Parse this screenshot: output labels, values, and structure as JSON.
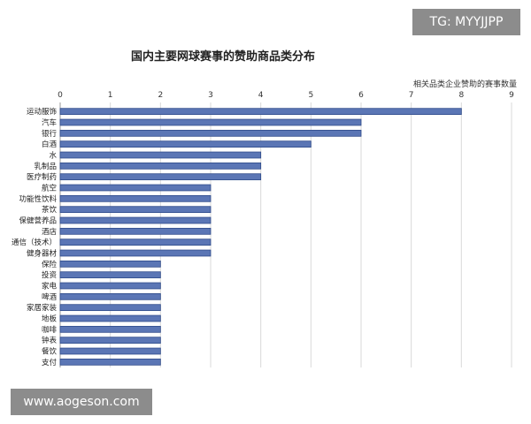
{
  "badges": {
    "top_right": "TG: MYYJJPP",
    "bottom_left": "www.aogeson.com"
  },
  "chart_data": {
    "type": "bar",
    "orientation": "horizontal",
    "title": "国内主要网球赛事的赞助商品类分布",
    "xlabel": "相关品类企业赞助的赛事数量",
    "ylabel": "",
    "xlim": [
      0,
      9
    ],
    "xticks": [
      0,
      1,
      2,
      3,
      4,
      5,
      6,
      7,
      8,
      9
    ],
    "axis_position": "top",
    "categories": [
      "运动服饰",
      "汽车",
      "银行",
      "白酒",
      "水",
      "乳制品",
      "医疗制药",
      "航空",
      "功能性饮料",
      "茶饮",
      "保健营养品",
      "酒店",
      "通信（技术）",
      "健身器材",
      "保险",
      "投资",
      "家电",
      "啤酒",
      "家居家装",
      "地板",
      "咖啡",
      "钟表",
      "餐饮",
      "支付"
    ],
    "values": [
      8,
      6,
      6,
      5,
      4,
      4,
      4,
      3,
      3,
      3,
      3,
      3,
      3,
      3,
      2,
      2,
      2,
      2,
      2,
      2,
      2,
      2,
      2,
      2
    ],
    "bar_color": "#5b76b5",
    "bar_border": "#2e4a8a",
    "grid": true
  }
}
